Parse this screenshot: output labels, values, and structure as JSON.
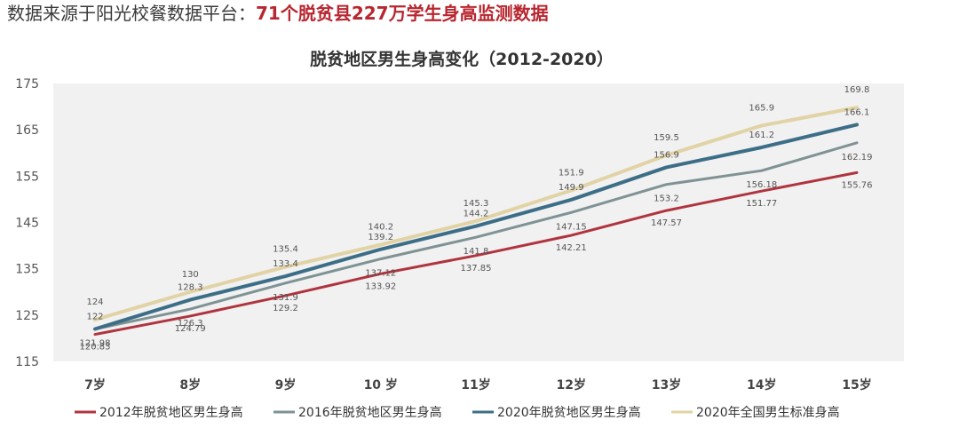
{
  "header": {
    "source_text": "数据来源于阳光校餐数据平台",
    "colon": "：",
    "highlight": "71个脱贫县227万学生身高监测数据"
  },
  "chart_data": {
    "type": "line",
    "title": "脱贫地区男生身高变化（2012-2020）",
    "xlabel": "",
    "ylabel": "",
    "ylim": [
      115,
      175
    ],
    "yticks": [
      115,
      125,
      135,
      145,
      155,
      165,
      175
    ],
    "categories": [
      "7岁",
      "8岁",
      "9岁",
      "10 岁",
      "11岁",
      "12岁",
      "13岁",
      "14岁",
      "15岁"
    ],
    "grid": false,
    "legend_position": "bottom",
    "series": [
      {
        "name": "2012年脱贫地区男生身高",
        "color": "#b0343f",
        "values": [
          120.83,
          124.79,
          129.2,
          133.92,
          137.85,
          142.21,
          147.57,
          151.77,
          155.76
        ]
      },
      {
        "name": "2016年脱贫地区男生身高",
        "color": "#7f9294",
        "values": [
          121.98,
          126.3,
          131.9,
          137.12,
          141.8,
          147.15,
          153.2,
          156.18,
          162.19
        ]
      },
      {
        "name": "2020年脱贫地区男生身高",
        "color": "#3d6e87",
        "values": [
          122,
          128.3,
          133.4,
          139.2,
          144.2,
          149.9,
          156.9,
          161.2,
          166.1
        ]
      },
      {
        "name": "2020年全国男生标准身高",
        "color": "#e1d3a5",
        "values": [
          124,
          130,
          135.4,
          140.2,
          145.3,
          151.9,
          159.5,
          165.9,
          169.8
        ]
      }
    ]
  }
}
